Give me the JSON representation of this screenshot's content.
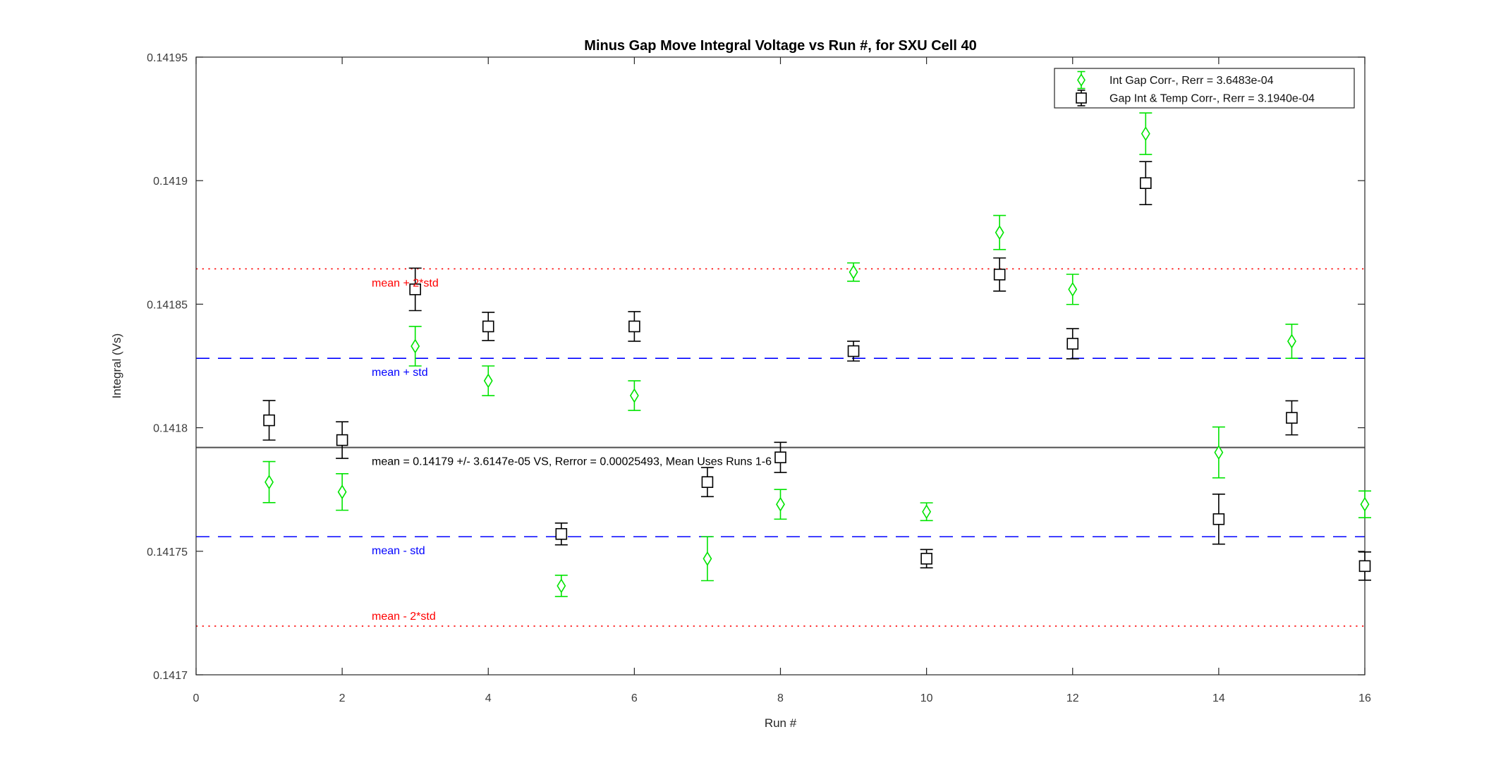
{
  "chart_data": {
    "type": "scatter",
    "title": "Minus Gap Move Integral Voltage vs Run #, for SXU Cell 40",
    "xlabel": "Run #",
    "ylabel": "Integral (Vs)",
    "xlim": [
      0,
      16
    ],
    "ylim": [
      0.1417,
      0.14195
    ],
    "xticks": [
      0,
      2,
      4,
      6,
      8,
      10,
      12,
      14,
      16
    ],
    "yticks": [
      0.1417,
      0.14175,
      0.1418,
      0.14185,
      0.1419,
      0.14195
    ],
    "ytick_labels": [
      "0.1417",
      "0.14175",
      "0.1418",
      "0.14185",
      "0.1419",
      "0.14195"
    ],
    "grid": false,
    "legend_position": "top-right",
    "x": [
      1,
      2,
      3,
      4,
      5,
      6,
      7,
      8,
      9,
      10,
      11,
      12,
      13,
      14,
      15,
      16
    ],
    "series": [
      {
        "name": "Int Gap Corr-, Rerr = 3.6483e-04",
        "marker": "diamond",
        "color": "#00e400",
        "values": [
          0.141778,
          0.141774,
          0.141833,
          0.141819,
          0.141736,
          0.141813,
          0.141747,
          0.141769,
          0.141863,
          0.141766,
          0.141879,
          0.141856,
          0.141919,
          0.14179,
          0.141835,
          0.141769
        ],
        "errors": [
          8.3e-06,
          7.4e-06,
          8e-06,
          6e-06,
          4.3e-06,
          6e-06,
          8.9e-06,
          6e-06,
          3.7e-06,
          3.6e-06,
          6.9e-06,
          6.1e-06,
          8.4e-06,
          1.03e-05,
          6.9e-06,
          5.4e-06
        ]
      },
      {
        "name": "Gap Int & Temp Corr-, Rerr = 3.1940e-04",
        "marker": "square",
        "color": "#000000",
        "values": [
          0.141803,
          0.141795,
          0.141856,
          0.141841,
          0.141757,
          0.141841,
          0.141778,
          0.141788,
          0.141831,
          0.141747,
          0.141862,
          0.141834,
          0.141899,
          0.141763,
          0.141804,
          0.141744
        ],
        "errors": [
          8e-06,
          7.4e-06,
          8.6e-06,
          5.7e-06,
          4.4e-06,
          6e-06,
          5.9e-06,
          6.1e-06,
          4e-06,
          3.7e-06,
          6.7e-06,
          6.1e-06,
          8.7e-06,
          1.01e-05,
          6.9e-06,
          5.7e-06
        ]
      }
    ],
    "reference_lines": [
      {
        "id": "mean-plus-2std",
        "label": "mean + 2*std",
        "value": 0.1418643,
        "style": "dotted",
        "color": "#ff0000",
        "label_color": "#ff0000",
        "label_side": "below"
      },
      {
        "id": "mean-plus-std",
        "label": "mean + std",
        "value": 0.1418281,
        "style": "dashed",
        "color": "#0000ff",
        "label_color": "#0000ff",
        "label_side": "below"
      },
      {
        "id": "mean",
        "label": "mean = 0.14179 +/- 3.6147e-05 VS, Rerror = 0.00025493, Mean Uses Runs 1-6",
        "value": 0.141792,
        "style": "solid",
        "color": "#4f4f4f",
        "label_color": "#000000",
        "label_side": "below"
      },
      {
        "id": "mean-minus-std",
        "label": "mean - std",
        "value": 0.1417559,
        "style": "dashed",
        "color": "#0000ff",
        "label_color": "#0000ff",
        "label_side": "below"
      },
      {
        "id": "mean-minus-2std",
        "label": "mean - 2*std",
        "value": 0.1417197,
        "style": "dotted",
        "color": "#ff0000",
        "label_color": "#ff0000",
        "label_side": "above"
      }
    ],
    "stats": {
      "mean": "0.14179",
      "std": "3.6147e-05",
      "rerror": "0.00025493",
      "mean_uses_runs": "1-6"
    },
    "legend": {
      "entries": [
        {
          "label": "Int Gap Corr-, Rerr = 3.6483e-04",
          "marker": "diamond",
          "color": "#00e400"
        },
        {
          "label": "Gap Int & Temp Corr-, Rerr = 3.1940e-04",
          "marker": "square",
          "color": "#000000"
        }
      ]
    },
    "axis_color": "#262626",
    "tick_label_color": "#3b3b3b"
  }
}
